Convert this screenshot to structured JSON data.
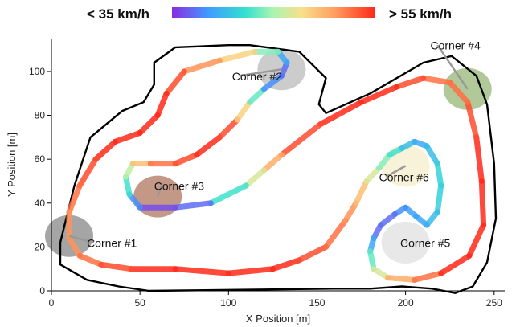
{
  "chart_data": {
    "type": "scatter",
    "title": "",
    "xlabel": "X Position [m]",
    "ylabel": "Y Position [m]",
    "xlim": [
      0,
      256
    ],
    "ylim": [
      0,
      115
    ],
    "xticks": [
      0,
      50,
      100,
      150,
      200,
      250
    ],
    "yticks": [
      0,
      20,
      40,
      60,
      80,
      100
    ],
    "colorbar": {
      "min_label": "< 35 km/h",
      "max_label": "> 55 km/h",
      "colormap": [
        "#8a2be2",
        "#3f9bff",
        "#33e0d0",
        "#aaf5b0",
        "#f8e08a",
        "#ffa060",
        "#ff2a1a"
      ]
    },
    "track_outer": [
      [
        5,
        22
      ],
      [
        13,
        48
      ],
      [
        22,
        70
      ],
      [
        40,
        82
      ],
      [
        52,
        86
      ],
      [
        58,
        94
      ],
      [
        58,
        104
      ],
      [
        70,
        111
      ],
      [
        100,
        112
      ],
      [
        112,
        112
      ],
      [
        140,
        109
      ],
      [
        155,
        97
      ],
      [
        151,
        85
      ],
      [
        155,
        81
      ],
      [
        180,
        90
      ],
      [
        210,
        104
      ],
      [
        226,
        107
      ],
      [
        240,
        98
      ],
      [
        246,
        85
      ],
      [
        250,
        58
      ],
      [
        251,
        33
      ],
      [
        246,
        13
      ],
      [
        238,
        2
      ],
      [
        228,
        -1
      ],
      [
        215,
        1
      ],
      [
        198,
        2
      ],
      [
        180,
        1
      ],
      [
        160,
        1
      ],
      [
        55,
        0
      ],
      [
        38,
        2
      ],
      [
        20,
        5
      ],
      [
        5,
        12
      ],
      [
        5,
        22
      ]
    ],
    "track_inner": [
      [
        18,
        22
      ],
      [
        22,
        40
      ],
      [
        28,
        56
      ],
      [
        35,
        66
      ],
      [
        48,
        72
      ],
      [
        60,
        75
      ],
      [
        68,
        84
      ],
      [
        72,
        96
      ],
      [
        80,
        104
      ],
      [
        95,
        105
      ],
      [
        113,
        105
      ],
      [
        128,
        102
      ],
      [
        136,
        94
      ],
      [
        132,
        86
      ],
      [
        120,
        80
      ],
      [
        108,
        76
      ],
      [
        88,
        64
      ],
      [
        72,
        54
      ],
      [
        48,
        44
      ],
      [
        46,
        36
      ],
      [
        52,
        35
      ],
      [
        80,
        36
      ],
      [
        108,
        43
      ],
      [
        128,
        54
      ],
      [
        140,
        62
      ],
      [
        150,
        72
      ],
      [
        172,
        80
      ],
      [
        195,
        89
      ],
      [
        212,
        92
      ],
      [
        225,
        90
      ],
      [
        232,
        82
      ],
      [
        232,
        65
      ],
      [
        230,
        50
      ],
      [
        228,
        36
      ],
      [
        225,
        23
      ],
      [
        215,
        14
      ],
      [
        200,
        11
      ],
      [
        190,
        12
      ],
      [
        183,
        20
      ],
      [
        176,
        26
      ],
      [
        168,
        22
      ],
      [
        165,
        30
      ],
      [
        168,
        42
      ],
      [
        175,
        52
      ],
      [
        180,
        56
      ],
      [
        176,
        46
      ],
      [
        170,
        36
      ],
      [
        168,
        30
      ],
      [
        172,
        24
      ],
      [
        182,
        26
      ],
      [
        195,
        30
      ],
      [
        205,
        36
      ],
      [
        210,
        46
      ],
      [
        218,
        60
      ],
      [
        222,
        58
      ],
      [
        222,
        40
      ],
      [
        216,
        27
      ],
      [
        210,
        18
      ],
      [
        198,
        14
      ],
      [
        186,
        13
      ],
      [
        176,
        15
      ],
      [
        166,
        20
      ],
      [
        160,
        32
      ],
      [
        155,
        44
      ],
      [
        150,
        52
      ],
      [
        128,
        46
      ],
      [
        100,
        38
      ],
      [
        72,
        30
      ],
      [
        46,
        28
      ],
      [
        35,
        26
      ],
      [
        30,
        18
      ],
      [
        28,
        10
      ],
      [
        38,
        8
      ],
      [
        60,
        10
      ],
      [
        100,
        9
      ],
      [
        140,
        10
      ],
      [
        160,
        12
      ],
      [
        170,
        20
      ],
      [
        176,
        40
      ],
      [
        184,
        60
      ],
      [
        195,
        72
      ],
      [
        212,
        80
      ],
      [
        222,
        80
      ],
      [
        226,
        72
      ],
      [
        222,
        62
      ],
      [
        212,
        52
      ],
      [
        200,
        44
      ],
      [
        195,
        36
      ],
      [
        190,
        22
      ],
      [
        180,
        15
      ],
      [
        165,
        14
      ],
      [
        140,
        18
      ],
      [
        118,
        22
      ],
      [
        96,
        18
      ],
      [
        72,
        16
      ],
      [
        50,
        16
      ],
      [
        36,
        14
      ],
      [
        20,
        14
      ],
      [
        18,
        22
      ]
    ],
    "regions": [
      {
        "name": "Corner #1",
        "color": "#9b9b9b",
        "x": 10,
        "y": 25
      },
      {
        "name": "Corner #2",
        "color": "#c6c6c6",
        "x": 130,
        "y": 101
      },
      {
        "name": "Corner #3",
        "color": "#bd8d79",
        "x": 60,
        "y": 43
      },
      {
        "name": "Corner #4",
        "color": "#a8c28e",
        "x": 235,
        "y": 92
      },
      {
        "name": "Corner #5",
        "color": "#e5e5e5",
        "x": 200,
        "y": 22
      },
      {
        "name": "Corner #6",
        "color": "#f6f1d4",
        "x": 200,
        "y": 57
      }
    ],
    "annotations": [
      {
        "text": "Corner #1",
        "label_x": 20,
        "label_y": 20
      },
      {
        "text": "Corner #2",
        "label_x": 102,
        "label_y": 96
      },
      {
        "text": "Corner #3",
        "label_x": 58,
        "label_y": 46
      },
      {
        "text": "Corner #4",
        "label_x": 214,
        "label_y": 110
      },
      {
        "text": "Corner #5",
        "label_x": 197,
        "label_y": 20
      },
      {
        "text": "Corner #6",
        "label_x": 185,
        "label_y": 50
      }
    ],
    "racing_line": [
      [
        45,
        10
      ],
      [
        70,
        10
      ],
      [
        100,
        8
      ],
      [
        125,
        10
      ],
      [
        140,
        14
      ],
      [
        155,
        20
      ],
      [
        166,
        32
      ],
      [
        172,
        40
      ],
      [
        178,
        50
      ],
      [
        185,
        56
      ],
      [
        191,
        62
      ],
      [
        198,
        65
      ],
      [
        205,
        68
      ],
      [
        212,
        66
      ],
      [
        218,
        58
      ],
      [
        220,
        48
      ],
      [
        218,
        36
      ],
      [
        212,
        30
      ],
      [
        206,
        34
      ],
      [
        200,
        38
      ],
      [
        194,
        35
      ],
      [
        186,
        30
      ],
      [
        182,
        24
      ],
      [
        180,
        18
      ],
      [
        182,
        10
      ],
      [
        190,
        6
      ],
      [
        205,
        5
      ],
      [
        220,
        8
      ],
      [
        236,
        16
      ],
      [
        244,
        30
      ],
      [
        243,
        50
      ],
      [
        240,
        70
      ],
      [
        235,
        86
      ],
      [
        225,
        95
      ],
      [
        210,
        97
      ],
      [
        195,
        93
      ],
      [
        175,
        86
      ],
      [
        152,
        76
      ],
      [
        130,
        62
      ],
      [
        120,
        55
      ],
      [
        110,
        48
      ],
      [
        90,
        40
      ],
      [
        70,
        38
      ],
      [
        50,
        38
      ],
      [
        44,
        44
      ],
      [
        42,
        52
      ],
      [
        46,
        58
      ],
      [
        56,
        58
      ],
      [
        70,
        58
      ],
      [
        82,
        62
      ],
      [
        95,
        70
      ],
      [
        105,
        78
      ],
      [
        112,
        86
      ],
      [
        120,
        92
      ],
      [
        130,
        98
      ],
      [
        133,
        104
      ],
      [
        128,
        109
      ],
      [
        115,
        109
      ],
      [
        95,
        105
      ],
      [
        75,
        100
      ],
      [
        65,
        90
      ],
      [
        60,
        80
      ],
      [
        50,
        72
      ],
      [
        36,
        68
      ],
      [
        25,
        60
      ],
      [
        16,
        48
      ],
      [
        10,
        36
      ],
      [
        10,
        24
      ],
      [
        16,
        16
      ],
      [
        28,
        12
      ],
      [
        45,
        10
      ]
    ],
    "speeds": [
      1,
      1,
      1,
      1,
      0.95,
      0.9,
      0.85,
      0.75,
      0.6,
      0.45,
      0.35,
      0.25,
      0.2,
      0.25,
      0.3,
      0.3,
      0.25,
      0.2,
      0.18,
      0.15,
      0.1,
      0.1,
      0.2,
      0.4,
      0.6,
      0.8,
      0.9,
      1,
      1,
      1,
      1,
      0.95,
      0.9,
      0.9,
      0.95,
      1,
      1,
      0.95,
      0.8,
      0.6,
      0.35,
      0.1,
      0.05,
      0.15,
      0.35,
      0.55,
      0.75,
      0.9,
      0.95,
      1,
      0.95,
      0.7,
      0.4,
      0.15,
      0.1,
      0.2,
      0.45,
      0.7,
      0.85,
      0.95,
      1,
      1,
      1,
      1,
      0.95,
      0.9,
      0.85,
      0.85,
      0.9,
      0.95,
      1
    ]
  }
}
